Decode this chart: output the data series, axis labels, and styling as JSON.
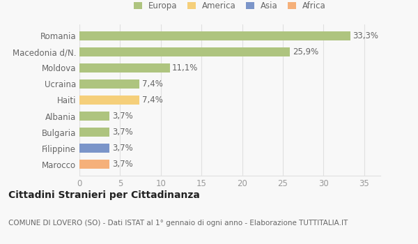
{
  "categories": [
    "Romania",
    "Macedonia d/N.",
    "Moldova",
    "Ucraina",
    "Haiti",
    "Albania",
    "Bulgaria",
    "Filippine",
    "Marocco"
  ],
  "values": [
    33.3,
    25.9,
    11.1,
    7.4,
    7.4,
    3.7,
    3.7,
    3.7,
    3.7
  ],
  "labels": [
    "33,3%",
    "25,9%",
    "11,1%",
    "7,4%",
    "7,4%",
    "3,7%",
    "3,7%",
    "3,7%",
    "3,7%"
  ],
  "colors": [
    "#aec47f",
    "#aec47f",
    "#aec47f",
    "#aec47f",
    "#f5cf7a",
    "#aec47f",
    "#aec47f",
    "#7b95c9",
    "#f5b07a"
  ],
  "legend_labels": [
    "Europa",
    "America",
    "Asia",
    "Africa"
  ],
  "legend_colors": [
    "#aec47f",
    "#f5cf7a",
    "#7b95c9",
    "#f5b07a"
  ],
  "title": "Cittadini Stranieri per Cittadinanza",
  "subtitle": "COMUNE DI LOVERO (SO) - Dati ISTAT al 1° gennaio di ogni anno - Elaborazione TUTTITALIA.IT",
  "xlim": [
    0,
    37
  ],
  "xticks": [
    0,
    5,
    10,
    15,
    20,
    25,
    30,
    35
  ],
  "background_color": "#f8f8f8",
  "plot_bg_color": "#f8f8f8",
  "grid_color": "#e0e0e0",
  "bar_height": 0.55,
  "title_fontsize": 10,
  "subtitle_fontsize": 7.5,
  "tick_fontsize": 8.5,
  "label_fontsize": 8.5,
  "legend_fontsize": 8.5
}
